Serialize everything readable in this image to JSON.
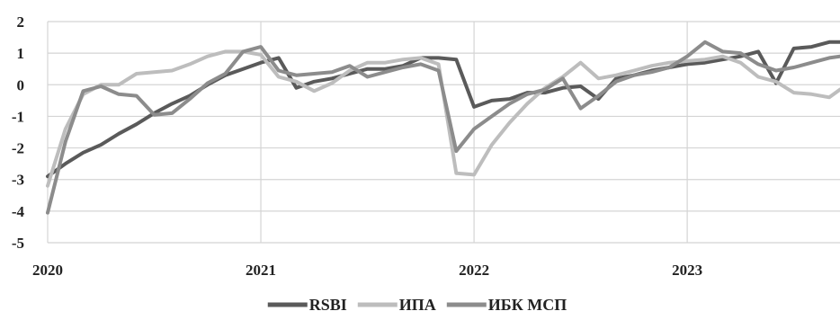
{
  "chart_data": {
    "type": "line",
    "title": "",
    "xlabel": "",
    "ylabel": "",
    "ylim": [
      -5,
      2
    ],
    "yticks": [
      2,
      1,
      0,
      -1,
      -2,
      -3,
      -4,
      -5
    ],
    "xticks": [
      {
        "label": "2020",
        "t": 0
      },
      {
        "label": "2021",
        "t": 12
      },
      {
        "label": "2022",
        "t": 24
      },
      {
        "label": "2023",
        "t": 36
      }
    ],
    "xlim": [
      0,
      44.6
    ],
    "grid": true,
    "legend_position": "bottom-center",
    "series": [
      {
        "name": "RSBI",
        "color": "#5a5a5a",
        "x": [
          0,
          1,
          2,
          3,
          4,
          5,
          6,
          7,
          8,
          9,
          10,
          11,
          12,
          13,
          14,
          15,
          16,
          17,
          18,
          19,
          20,
          21,
          22,
          23,
          24,
          25,
          26,
          27,
          28,
          29,
          30,
          31,
          32,
          33,
          34,
          35,
          36,
          37,
          38,
          39,
          40,
          41,
          42,
          43,
          44,
          44.6
        ],
        "values": [
          -2.9,
          -2.5,
          -2.15,
          -1.9,
          -1.55,
          -1.25,
          -0.9,
          -0.6,
          -0.35,
          0.0,
          0.3,
          0.5,
          0.7,
          0.85,
          -0.1,
          0.1,
          0.2,
          0.35,
          0.5,
          0.5,
          0.6,
          0.85,
          0.85,
          0.8,
          -0.7,
          -0.5,
          -0.45,
          -0.25,
          -0.25,
          -0.1,
          -0.05,
          -0.45,
          0.2,
          0.3,
          0.45,
          0.55,
          0.65,
          0.7,
          0.8,
          0.9,
          1.05,
          0.05,
          1.15,
          1.2,
          1.35,
          1.35
        ]
      },
      {
        "name": "ИПА",
        "color": "#bdbdbd",
        "x": [
          0,
          1,
          2,
          3,
          4,
          5,
          6,
          7,
          8,
          9,
          10,
          11,
          12,
          13,
          14,
          15,
          16,
          17,
          18,
          19,
          20,
          21,
          22,
          23,
          24,
          25,
          26,
          27,
          28,
          29,
          30,
          31,
          32,
          33,
          34,
          35,
          36,
          37,
          38,
          39,
          40,
          41,
          42,
          43,
          44,
          44.6
        ],
        "values": [
          -3.2,
          -1.4,
          -0.3,
          0.0,
          0.0,
          0.35,
          0.4,
          0.45,
          0.65,
          0.9,
          1.05,
          1.05,
          0.95,
          0.25,
          0.1,
          -0.2,
          0.05,
          0.45,
          0.7,
          0.7,
          0.8,
          0.85,
          0.65,
          -2.8,
          -2.85,
          -1.9,
          -1.2,
          -0.6,
          -0.1,
          0.25,
          0.7,
          0.2,
          0.3,
          0.45,
          0.6,
          0.7,
          0.75,
          0.8,
          0.9,
          0.7,
          0.25,
          0.1,
          -0.25,
          -0.3,
          -0.4,
          -0.15
        ]
      },
      {
        "name": "ИБК МСП",
        "color": "#8c8c8c",
        "x": [
          0,
          1,
          2,
          3,
          4,
          5,
          6,
          7,
          8,
          9,
          10,
          11,
          12,
          13,
          14,
          15,
          16,
          17,
          18,
          19,
          20,
          21,
          22,
          23,
          24,
          25,
          26,
          27,
          28,
          29,
          30,
          31,
          32,
          33,
          34,
          35,
          36,
          37,
          38,
          39,
          40,
          41,
          42,
          43,
          44,
          44.6
        ],
        "values": [
          -4.05,
          -1.8,
          -0.2,
          -0.05,
          -0.3,
          -0.35,
          -0.95,
          -0.9,
          -0.45,
          0.05,
          0.35,
          1.05,
          1.2,
          0.45,
          0.3,
          0.35,
          0.4,
          0.6,
          0.25,
          0.4,
          0.55,
          0.65,
          0.45,
          -2.1,
          -1.4,
          -1.0,
          -0.6,
          -0.3,
          -0.15,
          0.2,
          -0.75,
          -0.35,
          0.1,
          0.3,
          0.4,
          0.55,
          0.9,
          1.35,
          1.05,
          1.0,
          0.65,
          0.45,
          0.55,
          0.7,
          0.85,
          0.9
        ]
      }
    ]
  }
}
